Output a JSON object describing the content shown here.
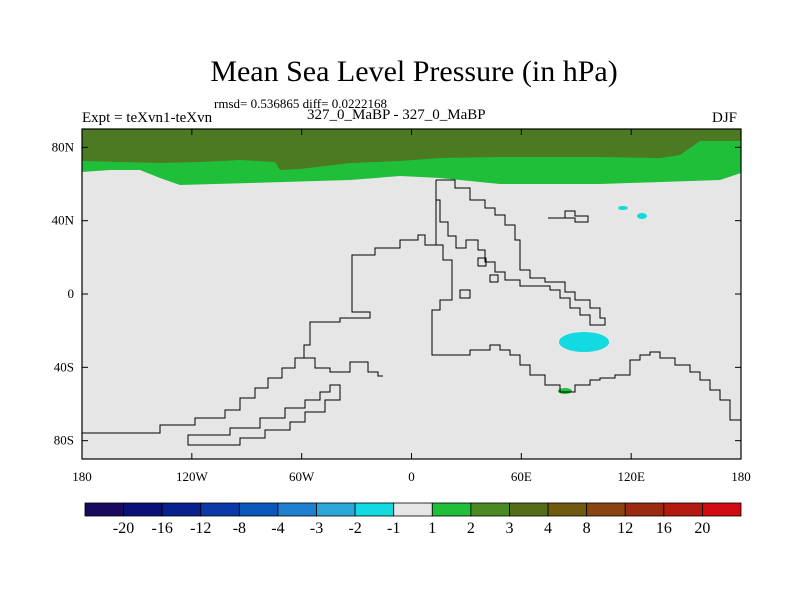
{
  "chart_data": {
    "type": "heatmap",
    "title": "Mean Sea Level Pressure (in hPa)",
    "stats": "rmsd= 0.536865 diff= 0.0222168",
    "left_label": "Expt = teXvn1-teXvn",
    "center_label": "327_0_MaBP - 327_0_MaBP",
    "right_label": "DJF",
    "x_ticks": [
      "180",
      "120W",
      "60W",
      "0",
      "60E",
      "120E",
      "180"
    ],
    "y_ticks": [
      "80N",
      "40N",
      "0",
      "40S",
      "80S"
    ],
    "xlim": [
      -180,
      180
    ],
    "ylim": [
      -90,
      90
    ],
    "field_regions": [
      {
        "name": "arctic-band",
        "level": "3 to 4"
      },
      {
        "name": "northern-band",
        "level": "1 to 2"
      },
      {
        "name": "indian-ocean-low",
        "level": "-2 to -1"
      },
      {
        "name": "north-pacific-low-1",
        "level": "-2 to -1"
      },
      {
        "name": "north-pacific-low-2",
        "level": "-2 to -1"
      },
      {
        "name": "southern-patch",
        "level": "1 to 2"
      },
      {
        "name": "background",
        "level": "-1 to 1"
      }
    ],
    "colorbar": {
      "labels": [
        "-20",
        "-16",
        "-12",
        "-8",
        "-4",
        "-3",
        "-2",
        "-1",
        "1",
        "2",
        "3",
        "4",
        "8",
        "12",
        "16",
        "20"
      ],
      "colors": [
        "#1a0a5e",
        "#0b0f78",
        "#09208f",
        "#0a3aa8",
        "#0b56ba",
        "#1f80cf",
        "#2aa6d8",
        "#13dae0",
        "#e6e6e6",
        "#1fbf3a",
        "#4b8a23",
        "#566d18",
        "#6f5a10",
        "#8a4410",
        "#9a2a10",
        "#b41a10",
        "#d00a10"
      ]
    }
  }
}
